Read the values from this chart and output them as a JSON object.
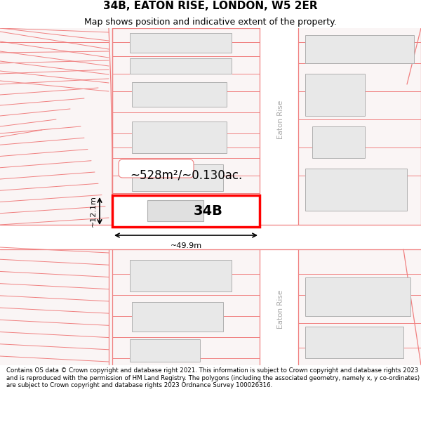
{
  "title": "34B, EATON RISE, LONDON, W5 2ER",
  "subtitle": "Map shows position and indicative extent of the property.",
  "footer": "Contains OS data © Crown copyright and database right 2021. This information is subject to Crown copyright and database rights 2023 and is reproduced with the permission of HM Land Registry. The polygons (including the associated geometry, namely x, y co-ordinates) are subject to Crown copyright and database rights 2023 Ordnance Survey 100026316.",
  "map_bg": "#faf5f5",
  "building_fill": "#e8e8e8",
  "building_edge": "#b0b0b0",
  "highlight_fill": "#ffffff",
  "highlight_edge": "#ff0000",
  "plot_lines_color": "#f08080",
  "label_34b": "34B",
  "label_area": "~528m²/~0.130ac.",
  "label_width": "~49.9m",
  "label_height": "~12.1m",
  "eaton_rise_label": "Eaton Rise",
  "title_fontsize": 11,
  "subtitle_fontsize": 9,
  "footer_fontsize": 6.2
}
